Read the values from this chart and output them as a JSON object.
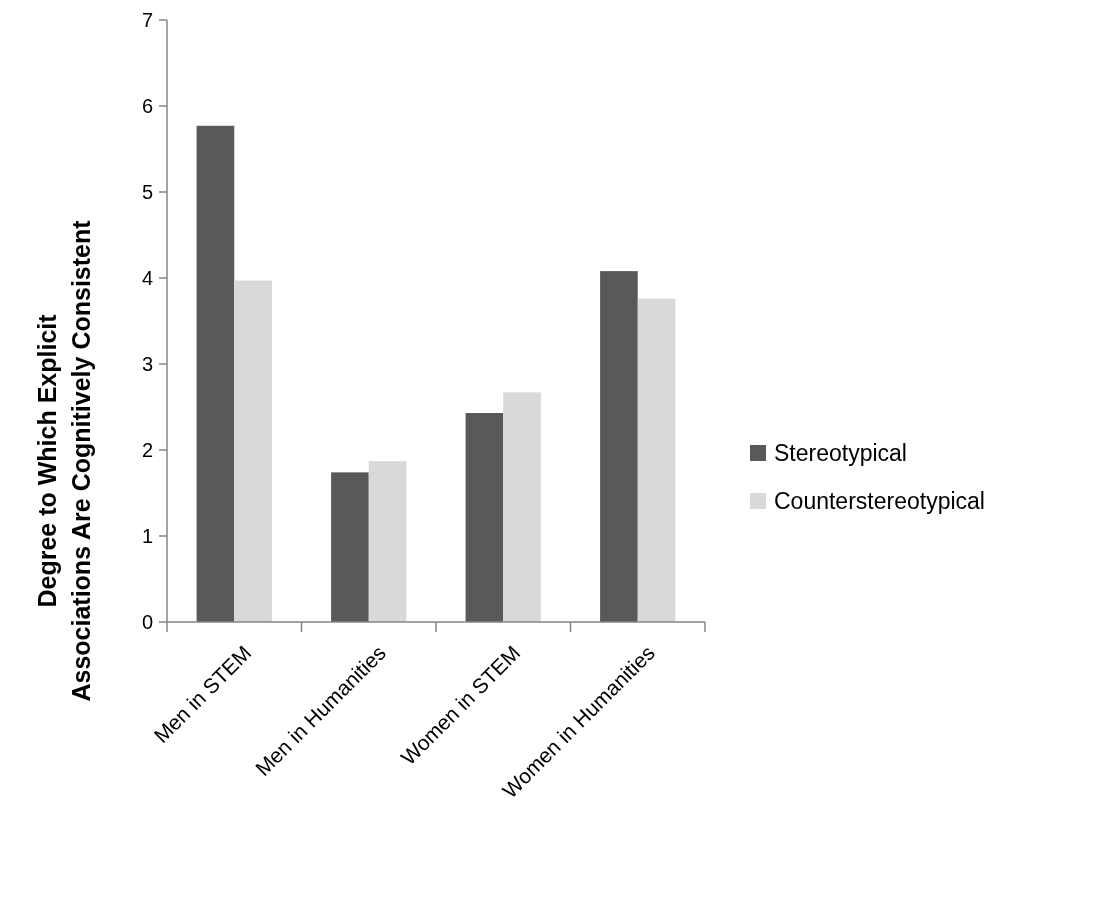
{
  "chart_data": {
    "type": "bar",
    "ylabel": "Degree to Which Explicit Associations Are Cognitively Consistent",
    "categories": [
      "Men in STEM",
      "Men in Humanities",
      "Women in STEM",
      "Women in Humanities"
    ],
    "series": [
      {
        "name": "Stereotypical",
        "color": "#595959",
        "values": [
          5.77,
          1.74,
          2.43,
          4.08
        ]
      },
      {
        "name": "Counterstereotypical",
        "color": "#d9d9d9",
        "values": [
          3.97,
          1.87,
          2.67,
          3.76
        ]
      }
    ],
    "ylim": [
      0,
      7
    ],
    "yticks": [
      0,
      1,
      2,
      3,
      4,
      5,
      6,
      7
    ],
    "grid": false,
    "legend": "right"
  }
}
